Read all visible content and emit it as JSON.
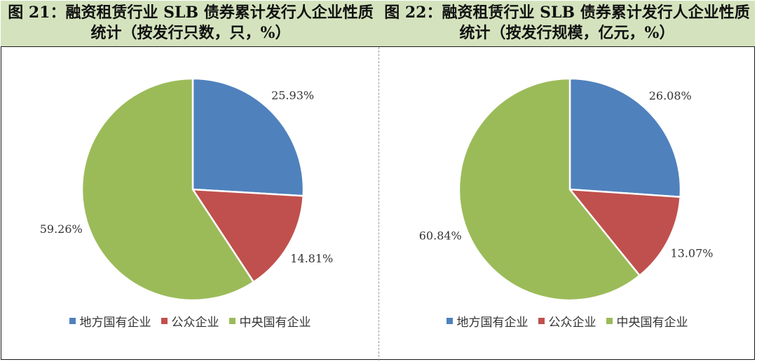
{
  "colors": {
    "header_bg": "#d4e3bd",
    "local_soe": "#4f81bd",
    "public": "#c0504d",
    "central_soe": "#9bbb59"
  },
  "chart_data": [
    {
      "type": "pie",
      "title": "图 21：融资租赁行业 SLB 债券累计发行人企业性质统计（按发行只数，只，%）",
      "title_lines": [
        "图 21：融资租赁行业 SLB 债券累计发行人企业性质",
        "统计（按发行只数，只，%）"
      ],
      "categories": [
        "地方国有企业",
        "公众企业",
        "中央国有企业"
      ],
      "values": [
        25.93,
        14.81,
        59.26
      ],
      "value_labels": [
        "25.93%",
        "14.81%",
        "59.26%"
      ],
      "legend_position": "bottom"
    },
    {
      "type": "pie",
      "title": "图 22：融资租赁行业 SLB 债券累计发行人企业性质统计（按发行规模，亿元，%）",
      "title_lines": [
        "图 22：融资租赁行业 SLB 债券累计发行人企业性质",
        "统计（按发行规模，亿元，%）"
      ],
      "categories": [
        "地方国有企业",
        "公众企业",
        "中央国有企业"
      ],
      "values": [
        26.08,
        13.07,
        60.84
      ],
      "value_labels": [
        "26.08%",
        "13.07%",
        "60.84%"
      ],
      "legend_position": "bottom"
    }
  ]
}
